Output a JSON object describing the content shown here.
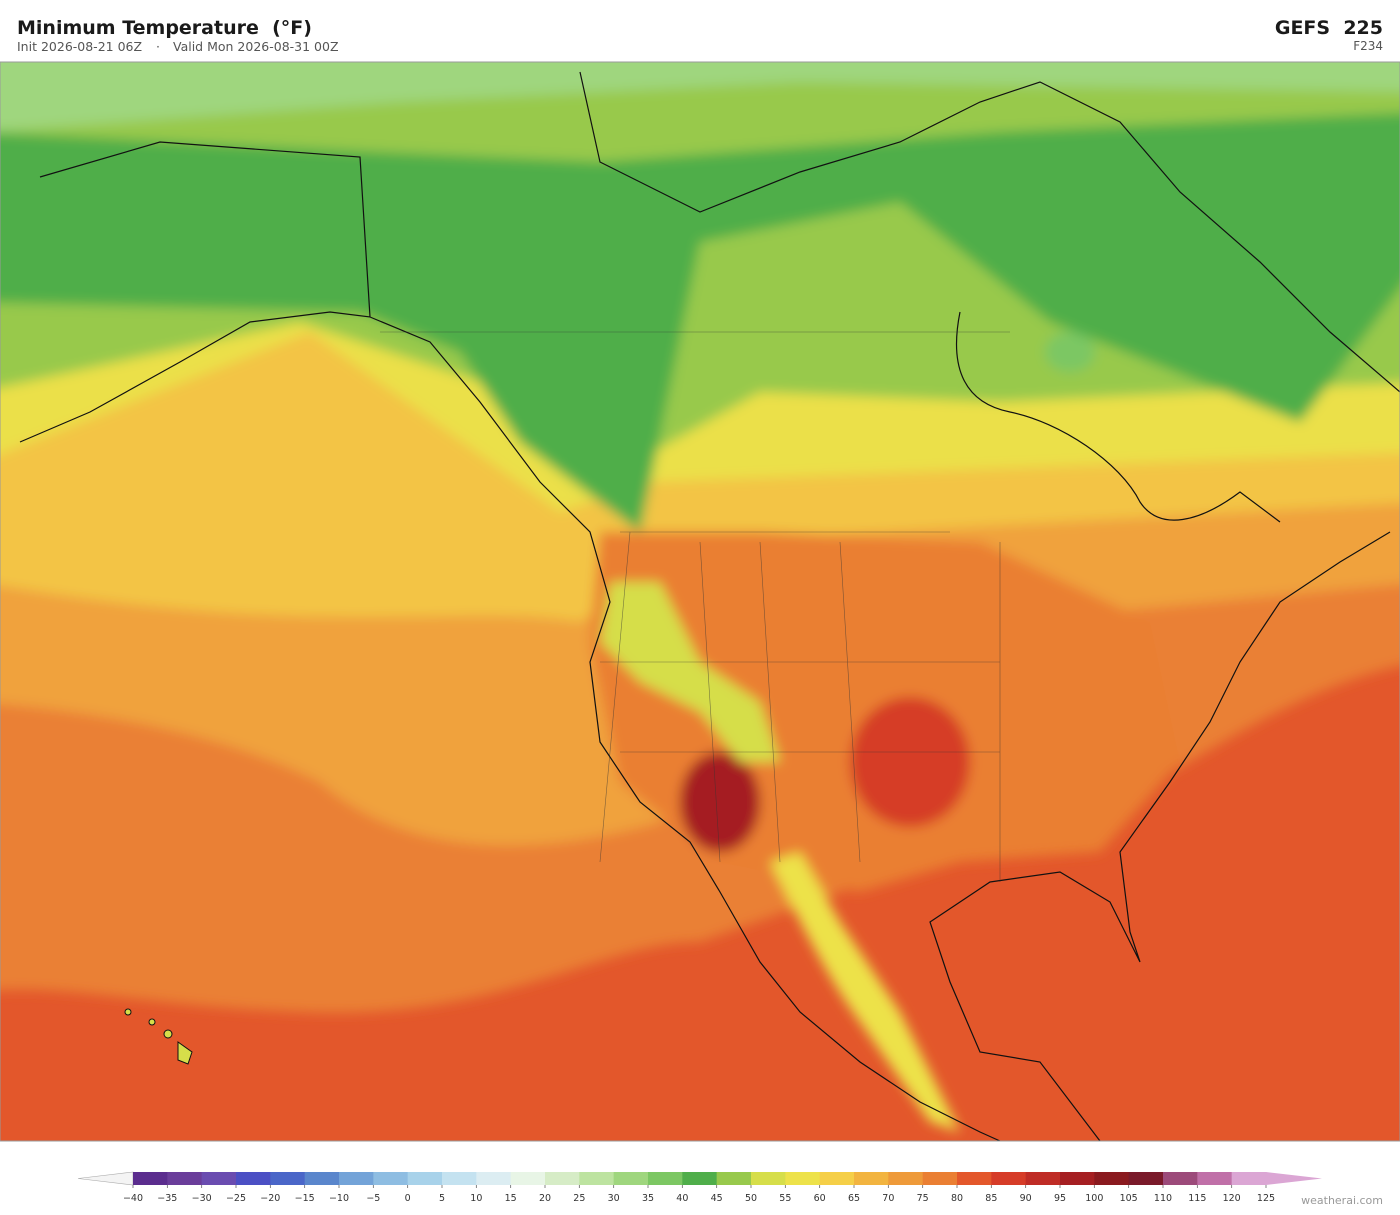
{
  "header": {
    "title": "Minimum Temperature  (°F)",
    "init": "Init 2026-08-21 06Z",
    "separator": "·",
    "valid": "Valid Mon 2026-08-31 00Z",
    "model": "GEFS  225",
    "forecast_hour": "F234"
  },
  "colorbar": {
    "ticks": [
      {
        "value": -40,
        "label": "−40"
      },
      {
        "value": -35,
        "label": "−35"
      },
      {
        "value": -30,
        "label": "−30"
      },
      {
        "value": -25,
        "label": "−25"
      },
      {
        "value": -20,
        "label": "−20"
      },
      {
        "value": -15,
        "label": "−15"
      },
      {
        "value": -10,
        "label": "−10"
      },
      {
        "value": -5,
        "label": "−5"
      },
      0,
      5,
      10,
      15,
      20,
      25,
      30,
      35,
      40,
      45,
      50,
      55,
      60,
      65,
      70,
      75,
      80,
      85,
      90,
      95,
      100,
      105,
      110,
      115,
      120,
      125
    ],
    "colors": [
      "#5b2d8e",
      "#6a3d9a",
      "#6a4cb0",
      "#4b4fc4",
      "#4a66c8",
      "#5a86cc",
      "#73a3d8",
      "#8ebde2",
      "#a8d2ea",
      "#c4e2f0",
      "#dcedf2",
      "#e8f5e6",
      "#d6ecc6",
      "#bde3a0",
      "#9fd67e",
      "#7cc763",
      "#4fae4a",
      "#98c94c",
      "#d6de4a",
      "#ede24a",
      "#f5cf48",
      "#f2b440",
      "#ee9a3a",
      "#ea7f33",
      "#e3572b",
      "#d63c28",
      "#bf2c26",
      "#a51f22",
      "#8a1a1f",
      "#7a1a2a",
      "#9c4a7a",
      "#c070a8",
      "#dba6d4"
    ],
    "under_color": "#f4f4f4",
    "over_color": "#dba6d4"
  },
  "footer": {
    "credit": "weatherai.com"
  }
}
